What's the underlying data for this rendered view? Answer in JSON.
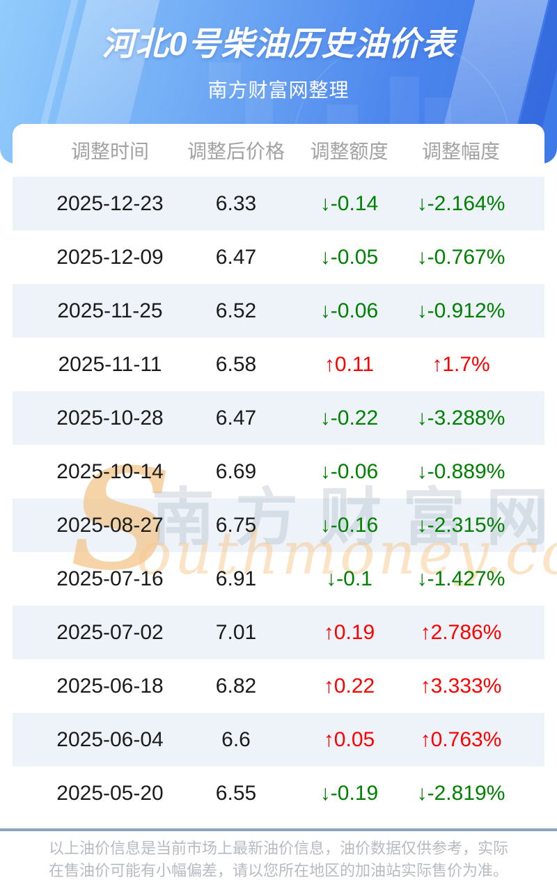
{
  "header": {
    "title": "河北0号柴油历史油价表",
    "subtitle": "南方财富网整理"
  },
  "table": {
    "columns": [
      "调整时间",
      "调整后价格",
      "调整额度",
      "调整幅度"
    ],
    "rows": [
      {
        "date": "2025-12-23",
        "price": "6.33",
        "change": "↓-0.14",
        "percent": "↓-2.164%",
        "direction": "down"
      },
      {
        "date": "2025-12-09",
        "price": "6.47",
        "change": "↓-0.05",
        "percent": "↓-0.767%",
        "direction": "down"
      },
      {
        "date": "2025-11-25",
        "price": "6.52",
        "change": "↓-0.06",
        "percent": "↓-0.912%",
        "direction": "down"
      },
      {
        "date": "2025-11-11",
        "price": "6.58",
        "change": "↑0.11",
        "percent": "↑1.7%",
        "direction": "up"
      },
      {
        "date": "2025-10-28",
        "price": "6.47",
        "change": "↓-0.22",
        "percent": "↓-3.288%",
        "direction": "down"
      },
      {
        "date": "2025-10-14",
        "price": "6.69",
        "change": "↓-0.06",
        "percent": "↓-0.889%",
        "direction": "down"
      },
      {
        "date": "2025-08-27",
        "price": "6.75",
        "change": "↓-0.16",
        "percent": "↓-2.315%",
        "direction": "down"
      },
      {
        "date": "2025-07-16",
        "price": "6.91",
        "change": "↓-0.1",
        "percent": "↓-1.427%",
        "direction": "down"
      },
      {
        "date": "2025-07-02",
        "price": "7.01",
        "change": "↑0.19",
        "percent": "↑2.786%",
        "direction": "up"
      },
      {
        "date": "2025-06-18",
        "price": "6.82",
        "change": "↑0.22",
        "percent": "↑3.333%",
        "direction": "up"
      },
      {
        "date": "2025-06-04",
        "price": "6.6",
        "change": "↑0.05",
        "percent": "↑0.763%",
        "direction": "up"
      },
      {
        "date": "2025-05-20",
        "price": "6.55",
        "change": "↓-0.19",
        "percent": "↓-2.819%",
        "direction": "down"
      }
    ]
  },
  "watermark": {
    "initial": "S",
    "cn": "南方财富网",
    "en": "outhmoney.com"
  },
  "footer": {
    "line1": "以上油价信息是当前市场上最新油价信息，油价数据仅供参考，实际",
    "line2": "在售油价可能有小幅偏差，请以您所在地区的加油站实际售价为准。"
  },
  "colors": {
    "up_red": "#fe0000",
    "down_green": "#008000",
    "header_gradient": [
      "#92ccfc",
      "#4a84ec",
      "#3d79e7"
    ],
    "row_alt_bg": "#edf3f9",
    "divider": "#8ba3bd",
    "column_header_text": "#a2a2a2",
    "body_text": "#1b1b1b",
    "footer_text": "#b6bbc1",
    "watermark_orange": "#f3c387"
  }
}
